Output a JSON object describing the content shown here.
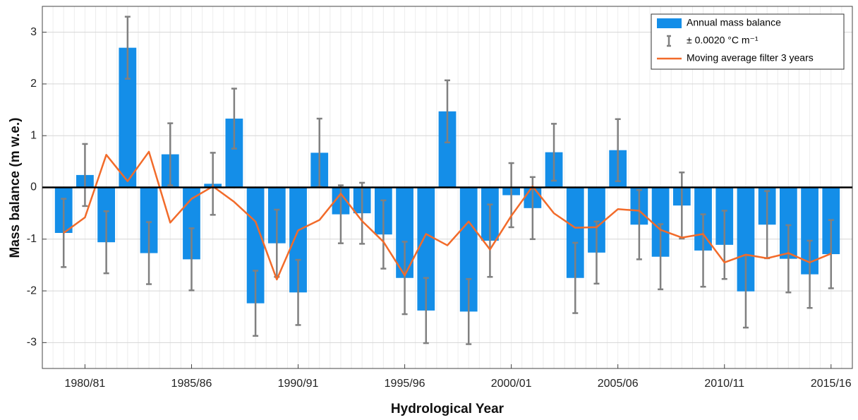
{
  "chart_data": {
    "type": "bar",
    "x_label": "Hydrological Year",
    "y_label": "Mass balance (m w.e.)",
    "categories": [
      null,
      "1980/81",
      null,
      null,
      null,
      null,
      "1985/86",
      null,
      null,
      null,
      null,
      "1990/91",
      null,
      null,
      null,
      null,
      "1995/96",
      null,
      null,
      null,
      null,
      "2000/01",
      null,
      null,
      null,
      null,
      "2005/06",
      null,
      null,
      null,
      null,
      "2010/11",
      null,
      null,
      null,
      null,
      "2015/16"
    ],
    "series": [
      {
        "name": "Annual mass balance",
        "type": "bar",
        "color": "#148ee8",
        "values": [
          -0.88,
          0.24,
          -1.06,
          2.7,
          -1.27,
          0.64,
          -1.39,
          0.07,
          1.33,
          -2.24,
          -1.08,
          -2.03,
          0.67,
          -0.52,
          -0.5,
          -0.91,
          -1.75,
          -2.38,
          1.47,
          -2.4,
          -1.03,
          -0.15,
          -0.4,
          0.68,
          -1.75,
          -1.26,
          0.72,
          -0.72,
          -1.34,
          -0.35,
          -1.22,
          -1.11,
          -2.01,
          -0.72,
          -1.38,
          -1.68,
          -1.29
        ],
        "errors": [
          0.66,
          0.6,
          0.6,
          0.6,
          0.6,
          0.6,
          0.6,
          0.6,
          0.58,
          0.63,
          0.65,
          0.63,
          0.66,
          0.56,
          0.59,
          0.66,
          0.7,
          0.63,
          0.6,
          0.63,
          0.7,
          0.62,
          0.6,
          0.55,
          0.68,
          0.6,
          0.6,
          0.67,
          0.63,
          0.64,
          0.7,
          0.66,
          0.7,
          0.65,
          0.65,
          0.65,
          0.66
        ],
        "error_name": "± 0.0020 °C m⁻¹",
        "error_color": "#808080"
      },
      {
        "name": "Moving average filter 3 years",
        "type": "line",
        "color": "#f26b2a",
        "values": [
          -0.88,
          -0.58,
          0.63,
          0.12,
          0.69,
          -0.68,
          -0.22,
          0.02,
          -0.28,
          -0.66,
          -1.78,
          -0.83,
          -0.63,
          -0.12,
          -0.65,
          -1.05,
          -1.7,
          -0.9,
          -1.12,
          -0.66,
          -1.2,
          -0.55,
          0.02,
          -0.5,
          -0.78,
          -0.77,
          -0.42,
          -0.45,
          -0.82,
          -0.97,
          -0.9,
          -1.45,
          -1.3,
          -1.37,
          -1.27,
          -1.45,
          -1.28
        ]
      }
    ],
    "ylim": [
      -3.5,
      3.5
    ],
    "yticks": [
      -3,
      -2,
      -1,
      0,
      1,
      2,
      3
    ],
    "grid": true,
    "legend": "top-right"
  }
}
